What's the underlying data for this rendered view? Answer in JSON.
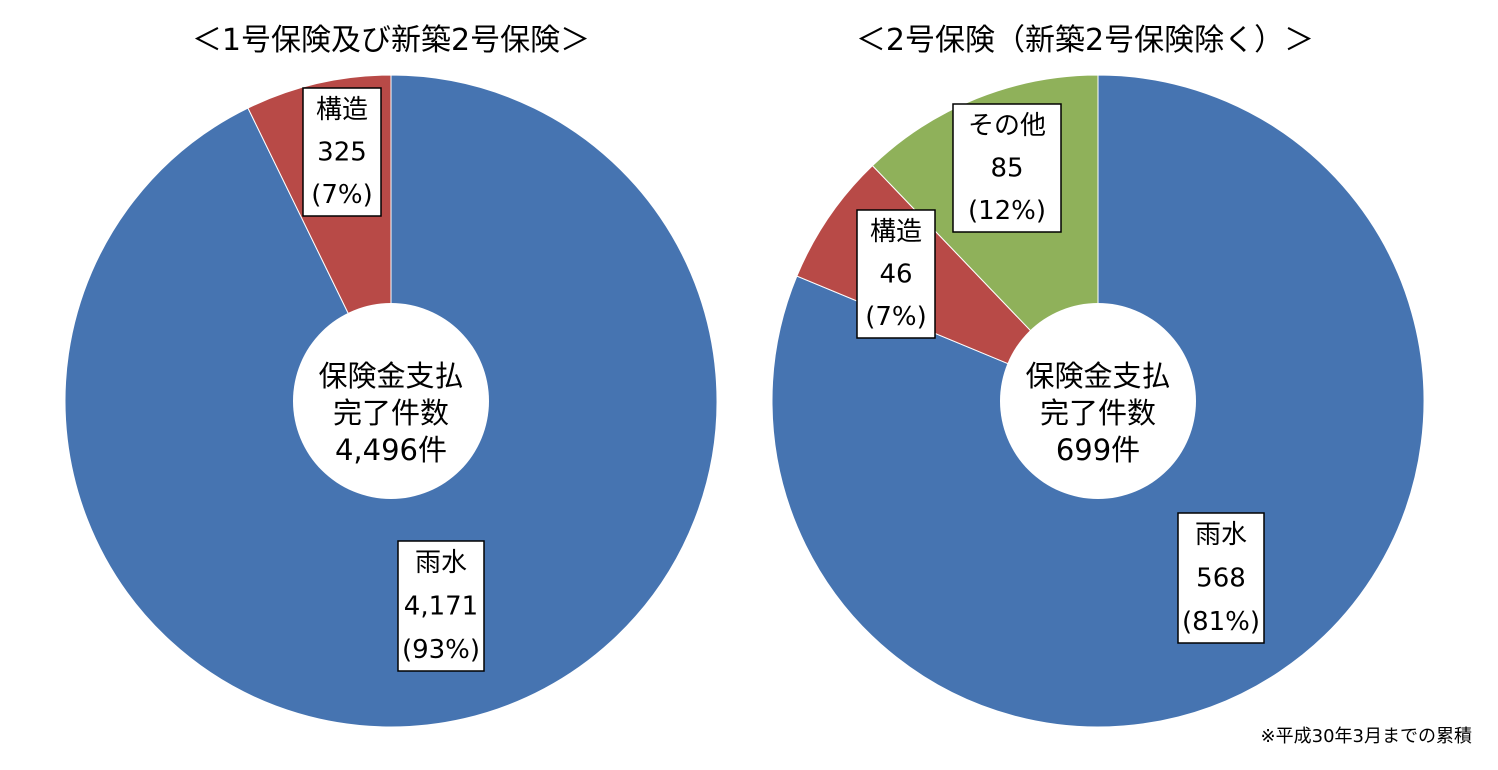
{
  "chart_data": [
    {
      "type": "pie",
      "title": "＜1号保険及び新築2号保険＞",
      "center_label": [
        "保険金支払",
        "完了件数",
        "4,496件"
      ],
      "slices": [
        {
          "name": "雨水",
          "value": 4171,
          "value_label": "4,171",
          "percent_label": "(93%)",
          "color": "#4674B1"
        },
        {
          "name": "構造",
          "value": 325,
          "value_label": "325",
          "percent_label": "(7%)",
          "color": "#B84A47"
        }
      ]
    },
    {
      "type": "pie",
      "title": "＜2号保険（新築2号保険除く）＞",
      "center_label": [
        "保険金支払",
        "完了件数",
        "699件"
      ],
      "slices": [
        {
          "name": "雨水",
          "value": 568,
          "value_label": "568",
          "percent_label": "(81%)",
          "color": "#4674B1"
        },
        {
          "name": "構造",
          "value": 46,
          "value_label": "46",
          "percent_label": "(7%)",
          "color": "#B84A47"
        },
        {
          "name": "その他",
          "value": 85,
          "value_label": "85",
          "percent_label": "(12%)",
          "color": "#8FB15A"
        }
      ]
    }
  ],
  "footnote": "※平成30年3月までの累積"
}
